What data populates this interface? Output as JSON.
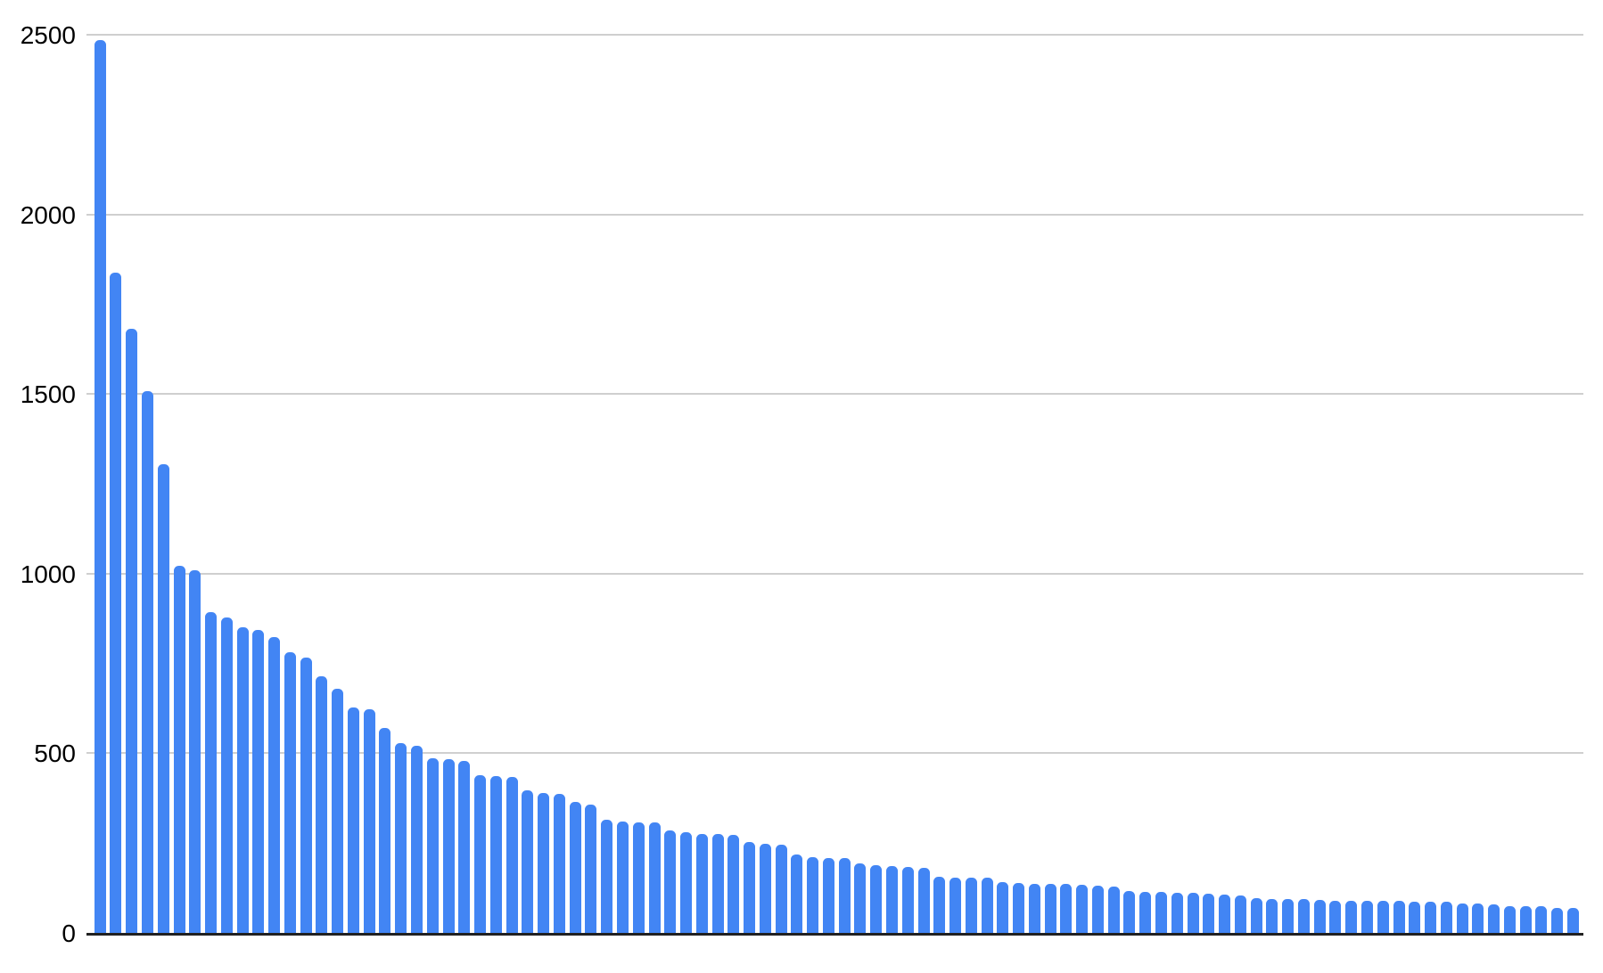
{
  "chart_data": {
    "type": "bar",
    "title": "",
    "xlabel": "",
    "ylabel": "",
    "ylim": [
      0,
      2500
    ],
    "y_ticks": [
      "0",
      "500",
      "1000",
      "1500",
      "2000",
      "2500"
    ],
    "grid": true,
    "legend_position": "none",
    "x_tick_labels": [],
    "bar_color": "#4285F4",
    "gridline_color": "#cfcfcf",
    "axis_line_color": "#212121",
    "tick_label_color": "#000000",
    "values": [
      2487,
      1840,
      1683,
      1510,
      1307,
      1025,
      1012,
      896,
      881,
      852,
      845,
      827,
      783,
      770,
      716,
      681,
      630,
      624,
      574,
      530,
      523,
      489,
      486,
      480,
      441,
      440,
      437,
      399,
      391,
      390,
      366,
      360,
      318,
      313,
      311,
      309,
      288,
      282,
      278,
      277,
      275,
      256,
      251,
      248,
      221,
      214,
      212,
      212,
      196,
      191,
      189,
      187,
      184,
      158,
      157,
      157,
      156,
      143,
      141,
      140,
      139,
      138,
      136,
      133,
      132,
      118,
      117,
      116,
      114,
      113,
      112,
      110,
      106,
      100,
      98,
      97,
      96,
      94,
      93,
      93,
      92,
      92,
      91,
      90,
      90,
      89,
      85,
      84,
      82,
      78,
      77,
      76,
      73,
      72
    ]
  }
}
